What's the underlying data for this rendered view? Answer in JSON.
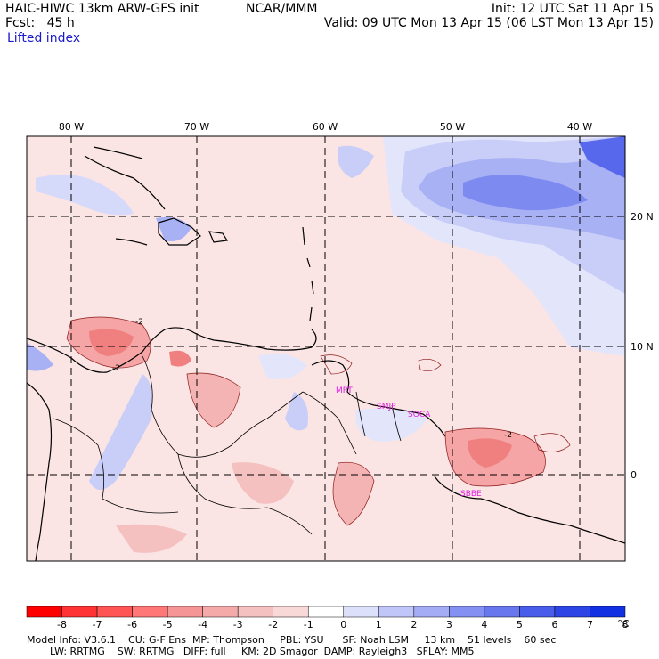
{
  "header": {
    "model": "HAIC-HIWC 13km ARW-GFS init",
    "center": "NCAR/MMM",
    "init": "Init: 12 UTC Sat 11 Apr 15",
    "forecast": "Fcst:   45 h",
    "valid": "Valid: 09 UTC Mon 13 Apr 15 (06 LST Mon 13 Apr 15)",
    "field": "Lifted index"
  },
  "map": {
    "lon_labels": [
      "80 W",
      "70 W",
      "60 W",
      "50 W",
      "40 W"
    ],
    "lat_labels": [
      "20 N",
      "10 N",
      "0"
    ],
    "stations": [
      "MPT",
      "SMJP",
      "SOCA",
      "SBBE"
    ],
    "contour_labels": [
      "-2",
      "-2",
      "-2"
    ]
  },
  "colorbar": {
    "ticks": [
      "-8",
      "-7",
      "-6",
      "-5",
      "-4",
      "-3",
      "-2",
      "-1",
      "0",
      "1",
      "2",
      "3",
      "4",
      "5",
      "6",
      "7",
      "8"
    ],
    "unit": "°C",
    "colors": [
      "#ff0000",
      "#ff3333",
      "#ff5555",
      "#ff7777",
      "#f59595",
      "#f5aaaa",
      "#f5c0c0",
      "#f9d8d8",
      "#ffffff",
      "#dde0fb",
      "#c0c6f8",
      "#a3acf5",
      "#8591f2",
      "#6877ee",
      "#4a5dea",
      "#2e45e6",
      "#1030e2"
    ]
  },
  "footer": {
    "line1": "Model Info: V3.6.1    CU: G-F Ens  MP: Thompson     PBL: YSU      SF: Noah LSM     13 km    51 levels    60 sec",
    "line2": "LW: RRTMG    SW: RRTMG   DIFF: full     KM: 2D Smagor  DAMP: Rayleigh3   SFLAY: MM5"
  }
}
